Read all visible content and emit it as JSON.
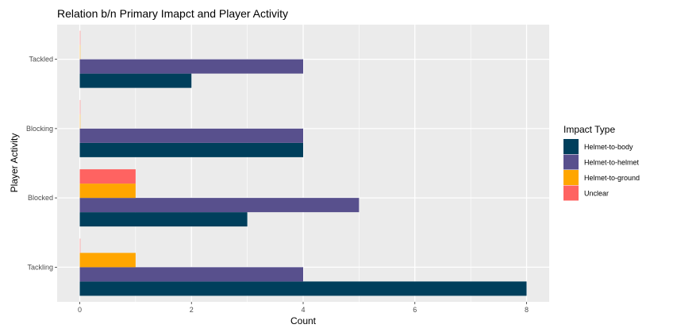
{
  "chart_data": {
    "type": "bar",
    "orientation": "horizontal",
    "title": "Relation b/n Primary Imapct and Player Activity",
    "xlabel": "Count",
    "ylabel": "Player Activity",
    "xlim": [
      0,
      8.4
    ],
    "x_ticks": [
      "0",
      "2",
      "4",
      "6",
      "8"
    ],
    "categories": [
      "Tackling",
      "Blocked",
      "Blocking",
      "Tackled"
    ],
    "legend_title": "Impact Type",
    "legend_position": "right",
    "grid": true,
    "series": [
      {
        "name": "Helmet-to-body",
        "color": "#003F5C",
        "values": [
          8,
          3,
          4,
          2
        ]
      },
      {
        "name": "Helmet-to-helmet",
        "color": "#58508D",
        "values": [
          4,
          5,
          4,
          4
        ]
      },
      {
        "name": "Helmet-to-ground",
        "color": "#FFA600",
        "values": [
          1,
          1,
          0,
          0
        ]
      },
      {
        "name": "Unclear",
        "color": "#FF6361",
        "values": [
          0,
          1,
          0,
          0
        ]
      }
    ]
  }
}
